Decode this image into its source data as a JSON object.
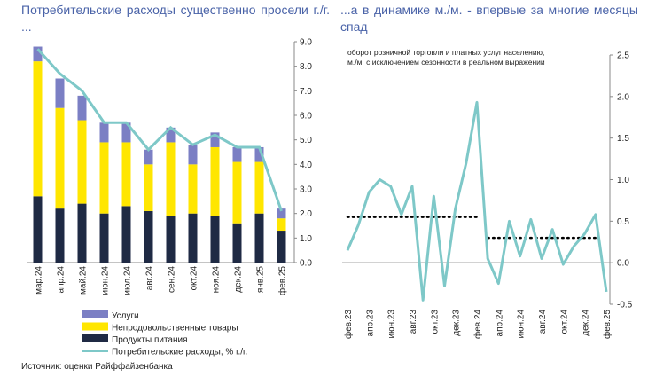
{
  "titles": {
    "left": "Потребительские расходы существенно просели г./г. ...",
    "right": "...а в динамике м./м. - впервые за многие месяцы спад"
  },
  "source": "Источник: оценки Райффайзенбанка",
  "colors": {
    "title": "#4a63a8",
    "services": "#7b7fc4",
    "nonfood": "#ffe600",
    "food": "#1f2a44",
    "line": "#7ec8c8",
    "dotted": "#000000",
    "axis": "#888888",
    "text": "#222222"
  },
  "chart_data": [
    {
      "type": "bar",
      "stacked": true,
      "categories": [
        "мар.24",
        "апр.24",
        "май.24",
        "июн.24",
        "июл.24",
        "авг.24",
        "сен.24",
        "окт.24",
        "ноя.24",
        "дек.24",
        "янв.25",
        "фев.25"
      ],
      "series": [
        {
          "name": "Продукты питания",
          "values": [
            2.7,
            2.2,
            2.4,
            2.0,
            2.3,
            2.1,
            1.9,
            2.0,
            1.9,
            1.6,
            2.0,
            1.3
          ]
        },
        {
          "name": "Непродовольственные товары",
          "values": [
            5.5,
            4.1,
            3.4,
            2.9,
            2.6,
            1.9,
            3.0,
            2.0,
            2.8,
            2.5,
            2.1,
            0.5
          ]
        },
        {
          "name": "Услуги",
          "values": [
            0.6,
            1.2,
            1.0,
            0.8,
            0.8,
            0.6,
            0.6,
            0.8,
            0.6,
            0.6,
            0.6,
            0.4
          ]
        }
      ],
      "line": {
        "name": "Потребительские расходы, % г./г.",
        "values": [
          8.7,
          7.7,
          7.0,
          5.7,
          5.7,
          4.6,
          5.5,
          4.8,
          5.2,
          4.7,
          4.7,
          2.1
        ]
      },
      "ylim": [
        0,
        9
      ],
      "yticks": [
        "0.0",
        "1.0",
        "2.0",
        "3.0",
        "4.0",
        "5.0",
        "6.0",
        "7.0",
        "8.0",
        "9.0"
      ],
      "legend": [
        "Услуги",
        "Непродовольственные товары",
        "Продукты питания",
        "Потребительские расходы, % г./г."
      ],
      "legend_position": "bottom-left"
    },
    {
      "type": "line",
      "annotation": "оборот розничной торговли и платных услуг населению, м./м. с исключением сезонности в реальном выражении",
      "x": [
        "фев.23",
        "мар.23",
        "апр.23",
        "май.23",
        "июн.23",
        "июл.23",
        "авг.23",
        "сен.23",
        "окт.23",
        "ноя.23",
        "дек.23",
        "янв.24",
        "фев.24",
        "мар.24",
        "апр.24",
        "май.24",
        "июн.24",
        "июл.24",
        "авг.24",
        "сен.24",
        "окт.24",
        "ноя.24",
        "дек.24",
        "янв.25",
        "фев.25"
      ],
      "xtick_labels": [
        "фев.23",
        "апр.23",
        "июн.23",
        "авг.23",
        "окт.23",
        "дек.23",
        "фев.24",
        "апр.24",
        "июн.24",
        "авг.24",
        "окт.24",
        "дек.24",
        "фев.25"
      ],
      "values": [
        0.15,
        0.45,
        0.85,
        1.0,
        0.92,
        0.58,
        0.92,
        -0.45,
        0.8,
        -0.28,
        0.65,
        1.2,
        1.93,
        0.05,
        -0.25,
        0.5,
        0.08,
        0.52,
        0.05,
        0.4,
        -0.02,
        0.2,
        0.35,
        0.58,
        -0.35
      ],
      "average_lines": [
        {
          "from": "фев.23",
          "to": "фев.24",
          "value": 0.55
        },
        {
          "from": "мар.24",
          "to": "янв.25",
          "value": 0.3
        }
      ],
      "ylim": [
        -0.5,
        2.5
      ],
      "yticks": [
        "-0.5",
        "0.0",
        "0.5",
        "1.0",
        "1.5",
        "2.0",
        "2.5"
      ],
      "y_axis_position": "right"
    }
  ]
}
